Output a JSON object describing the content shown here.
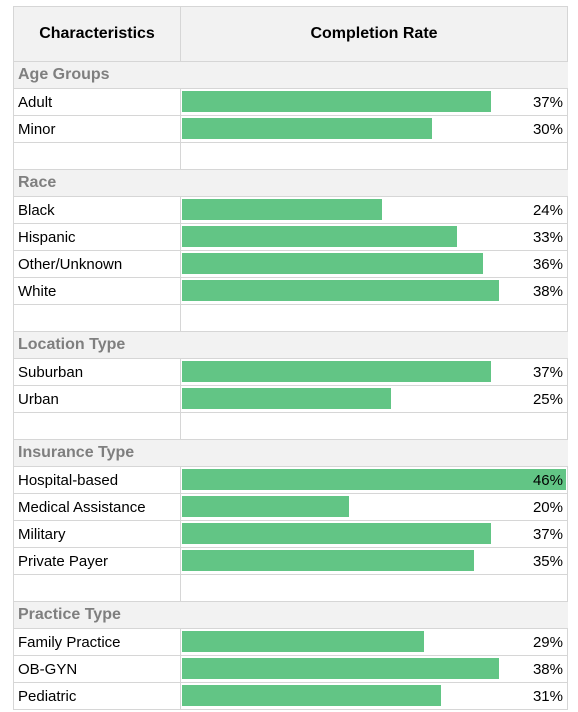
{
  "header": {
    "characteristics": "Characteristics",
    "completion_rate": "Completion Rate"
  },
  "colors": {
    "bar": "#62c585",
    "group_text": "#7f7f7f",
    "header_bg": "#f2f2f2",
    "grid": "#d6d6d6"
  },
  "chart_data": {
    "type": "bar",
    "orientation": "horizontal",
    "xlim": [
      0,
      46
    ],
    "groups": [
      {
        "name": "Age Groups",
        "items": [
          {
            "label": "Adult",
            "value": 37,
            "display": "37%"
          },
          {
            "label": "Minor",
            "value": 30,
            "display": "30%"
          }
        ]
      },
      {
        "name": "Race",
        "items": [
          {
            "label": "Black",
            "value": 24,
            "display": "24%"
          },
          {
            "label": "Hispanic",
            "value": 33,
            "display": "33%"
          },
          {
            "label": "Other/Unknown",
            "value": 36,
            "display": "36%"
          },
          {
            "label": "White",
            "value": 38,
            "display": "38%"
          }
        ]
      },
      {
        "name": "Location Type",
        "items": [
          {
            "label": "Suburban",
            "value": 37,
            "display": "37%"
          },
          {
            "label": "Urban",
            "value": 25,
            "display": "25%"
          }
        ]
      },
      {
        "name": "Insurance Type",
        "items": [
          {
            "label": "Hospital-based",
            "value": 46,
            "display": "46%"
          },
          {
            "label": "Medical Assistance",
            "value": 20,
            "display": "20%"
          },
          {
            "label": "Military",
            "value": 37,
            "display": "37%"
          },
          {
            "label": "Private Payer",
            "value": 35,
            "display": "35%"
          }
        ]
      },
      {
        "name": "Practice Type",
        "items": [
          {
            "label": "Family Practice",
            "value": 29,
            "display": "29%"
          },
          {
            "label": "OB-GYN",
            "value": 38,
            "display": "38%"
          },
          {
            "label": "Pediatric",
            "value": 31,
            "display": "31%"
          }
        ]
      }
    ]
  }
}
